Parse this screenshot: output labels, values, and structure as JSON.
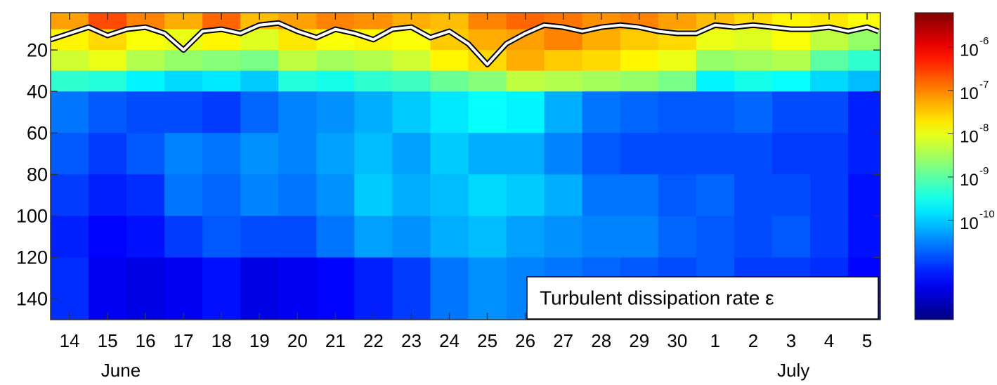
{
  "chart_data": {
    "type": "heatmap",
    "annotation": "Turbulent dissipation rate ε",
    "xlim": [
      13.5,
      35.35
    ],
    "xticks": [
      14,
      15,
      16,
      17,
      18,
      19,
      20,
      21,
      22,
      23,
      24,
      25,
      26,
      27,
      28,
      29,
      30,
      {
        "value": 31,
        "label": "1"
      },
      {
        "value": 32,
        "label": "2"
      },
      {
        "value": 33,
        "label": "3"
      },
      {
        "value": 34,
        "label": "4"
      },
      {
        "value": 35,
        "label": "5"
      }
    ],
    "month_labels": [
      {
        "value": 15.35,
        "label": "June"
      },
      {
        "value": 33.06,
        "label": "July"
      }
    ],
    "ylim": [
      150,
      2
    ],
    "yticks": [
      20,
      40,
      60,
      80,
      100,
      120,
      140
    ],
    "colormap": "jet",
    "zlim": [
      -12.3,
      -5.2
    ],
    "zticks": [
      {
        "value": -6,
        "label": "10",
        "exponent": "-6"
      },
      {
        "value": -7,
        "label": "10",
        "exponent": "-7"
      },
      {
        "value": -8,
        "label": "10",
        "exponent": "-8"
      },
      {
        "value": -9,
        "label": "10",
        "exponent": "-9"
      },
      {
        "value": -10,
        "label": "10",
        "exponent": "-10"
      }
    ],
    "x_bins": [
      13.5,
      14.5,
      15.5,
      16.5,
      17.5,
      18.5,
      19.5,
      20.5,
      21.5,
      22.5,
      23.5,
      24.5,
      25.5,
      26.5,
      27.5,
      28.5,
      29.5,
      30.5,
      31.5,
      32.5,
      33.5,
      34.5,
      35.35
    ],
    "y_bins": [
      2,
      10,
      20,
      30,
      40,
      60,
      80,
      100,
      120,
      150
    ],
    "z": [
      [
        -7.2,
        -6.6,
        -7.0,
        -7.3,
        -6.8,
        -7.4,
        -7.2,
        -7.0,
        -7.1,
        -7.3,
        -7.4,
        -7.0,
        -6.8,
        -6.9,
        -7.1,
        -7.0,
        -7.2,
        -7.4,
        -7.6,
        -7.8,
        -7.7,
        -7.9
      ],
      [
        -7.8,
        -7.6,
        -7.9,
        -8.0,
        -7.8,
        -8.1,
        -7.7,
        -7.9,
        -7.8,
        -7.9,
        -7.5,
        -7.3,
        -7.2,
        -7.0,
        -7.3,
        -7.5,
        -7.6,
        -8.0,
        -8.1,
        -7.9,
        -8.3,
        -8.6
      ],
      [
        -8.2,
        -8.0,
        -8.4,
        -8.6,
        -8.7,
        -8.8,
        -8.3,
        -8.5,
        -8.4,
        -8.2,
        -7.8,
        -7.6,
        -7.3,
        -7.5,
        -7.6,
        -7.8,
        -8.0,
        -8.6,
        -8.5,
        -8.4,
        -9.0,
        -9.3
      ],
      [
        -9.3,
        -9.4,
        -9.7,
        -9.9,
        -9.8,
        -10.0,
        -9.4,
        -9.5,
        -9.3,
        -9.2,
        -8.9,
        -8.7,
        -8.3,
        -8.4,
        -8.5,
        -8.6,
        -8.8,
        -9.7,
        -9.5,
        -9.6,
        -9.9,
        -10.1
      ],
      [
        -10.6,
        -10.8,
        -10.9,
        -10.9,
        -11.0,
        -10.7,
        -10.5,
        -10.4,
        -10.2,
        -10.0,
        -9.8,
        -9.6,
        -9.7,
        -10.2,
        -10.6,
        -10.7,
        -10.8,
        -10.8,
        -10.7,
        -10.9,
        -10.9,
        -11.2
      ],
      [
        -10.8,
        -11.0,
        -10.8,
        -10.5,
        -10.6,
        -10.4,
        -10.5,
        -10.3,
        -10.1,
        -10.3,
        -10.0,
        -10.2,
        -10.2,
        -10.5,
        -10.8,
        -10.9,
        -10.9,
        -10.9,
        -10.9,
        -11.0,
        -11.0,
        -11.2
      ],
      [
        -11.0,
        -11.2,
        -11.1,
        -10.6,
        -10.7,
        -10.5,
        -10.6,
        -10.4,
        -10.0,
        -10.2,
        -10.1,
        -9.9,
        -10.0,
        -10.2,
        -10.6,
        -10.6,
        -10.8,
        -10.7,
        -10.9,
        -10.9,
        -11.0,
        -11.3
      ],
      [
        -11.2,
        -11.4,
        -11.3,
        -11.0,
        -10.8,
        -10.9,
        -10.9,
        -10.6,
        -10.3,
        -10.4,
        -10.2,
        -10.1,
        -10.3,
        -10.4,
        -10.5,
        -10.5,
        -10.7,
        -10.8,
        -10.9,
        -10.8,
        -11.0,
        -11.3
      ],
      [
        -11.1,
        -11.5,
        -11.6,
        -11.5,
        -11.3,
        -11.6,
        -11.5,
        -11.4,
        -11.2,
        -11.0,
        -10.6,
        -10.4,
        -10.5,
        -10.6,
        -10.7,
        -10.8,
        -10.9,
        -10.8,
        -11.0,
        -11.0,
        -11.1,
        -11.4
      ]
    ],
    "mixed_layer": {
      "color": "#ffffff",
      "x": [
        13.5,
        14,
        14.5,
        15,
        15.5,
        16,
        16.5,
        17,
        17.5,
        18,
        18.5,
        19,
        19.5,
        20,
        20.5,
        21,
        21.5,
        22,
        22.5,
        23,
        23.5,
        24,
        24.5,
        25,
        25.5,
        26,
        26.5,
        27,
        27.5,
        28,
        28.5,
        29,
        29.5,
        30,
        30.5,
        31,
        31.5,
        32,
        32.5,
        33,
        33.5,
        34,
        34.5,
        35,
        35.3
      ],
      "values": [
        15,
        12,
        9,
        13,
        10,
        9,
        12,
        20,
        11,
        10,
        12,
        8,
        7,
        11,
        14,
        10,
        12,
        15,
        10,
        9,
        14,
        11,
        17,
        27,
        17,
        12,
        8,
        9,
        11,
        9,
        8,
        9,
        11,
        12,
        12,
        8,
        9,
        8,
        9,
        10,
        10,
        9,
        11,
        9,
        11
      ]
    }
  }
}
